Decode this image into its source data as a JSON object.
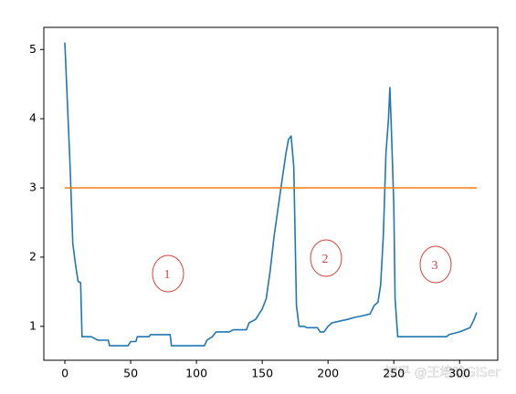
{
  "chart_data": {
    "type": "line",
    "series": [
      {
        "color": "#1f77b4",
        "x": [
          0,
          2,
          4,
          6,
          8,
          10,
          12,
          13,
          20,
          25,
          33,
          34,
          48,
          50,
          54,
          55,
          64,
          65,
          80,
          81,
          106,
          108,
          112,
          115,
          125,
          128,
          138,
          140,
          145,
          150,
          153,
          156,
          159,
          162,
          165,
          168,
          170,
          172,
          174,
          176,
          178,
          182,
          184,
          192,
          194,
          197,
          200,
          203,
          210,
          215,
          220,
          226,
          232,
          235,
          238,
          240,
          242,
          244,
          246,
          247,
          248,
          250,
          251,
          253,
          290,
          292,
          300,
          308,
          311,
          313
        ],
        "values": [
          5.1,
          4.2,
          3.3,
          2.2,
          1.9,
          1.65,
          1.63,
          0.85,
          0.85,
          0.8,
          0.8,
          0.72,
          0.72,
          0.78,
          0.78,
          0.85,
          0.85,
          0.88,
          0.88,
          0.72,
          0.72,
          0.8,
          0.85,
          0.92,
          0.92,
          0.95,
          0.95,
          1.05,
          1.1,
          1.25,
          1.4,
          1.8,
          2.3,
          2.7,
          3.1,
          3.5,
          3.7,
          3.75,
          3.3,
          1.3,
          1.0,
          1.0,
          0.98,
          0.98,
          0.92,
          0.92,
          1.0,
          1.05,
          1.08,
          1.1,
          1.13,
          1.15,
          1.18,
          1.3,
          1.35,
          1.6,
          2.3,
          3.5,
          4.0,
          4.45,
          3.95,
          2.75,
          1.4,
          0.85,
          0.85,
          0.88,
          0.92,
          0.98,
          1.1,
          1.2
        ]
      },
      {
        "color": "#ff7f0e",
        "x": [
          0,
          313
        ],
        "values": [
          3,
          3
        ]
      }
    ],
    "xlim": [
      -16,
      329
    ],
    "xticks": [
      0,
      50,
      100,
      150,
      200,
      250,
      300
    ],
    "ylim": [
      0.51,
      5.32
    ],
    "yticks": [
      1,
      2,
      3,
      4,
      5
    ],
    "annotations": [
      "1",
      "2",
      "3"
    ],
    "annotation_color": "#d9413a",
    "watermark": "知乎 @王培晗GISer"
  }
}
